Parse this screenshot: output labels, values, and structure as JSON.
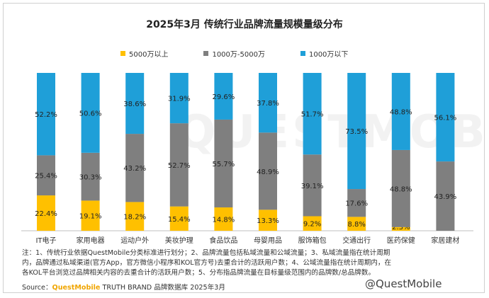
{
  "chart_data": {
    "type": "bar",
    "stacked": true,
    "title": "2025年3月 传统行业品牌流量规模量级分布",
    "categories": [
      "IT电子",
      "家用电器",
      "运动户外",
      "美妆护理",
      "食品饮品",
      "母婴用品",
      "服饰箱包",
      "交通出行",
      "医药保健",
      "家居建材"
    ],
    "series": [
      {
        "name": "5000万以上",
        "color": "#ffc000",
        "values": [
          22.4,
          19.1,
          18.2,
          15.4,
          14.8,
          13.3,
          9.2,
          8.8,
          2.3,
          0
        ],
        "labels": [
          "22.4%",
          "19.1%",
          "18.2%",
          "15.4%",
          "14.8%",
          "13.3%",
          "9.2%",
          "8.8%",
          "2.3%",
          ""
        ]
      },
      {
        "name": "1000万-5000万",
        "color": "#7f7f7f",
        "values": [
          25.4,
          30.3,
          43.2,
          52.7,
          55.7,
          48.9,
          39.1,
          17.6,
          48.8,
          43.9
        ],
        "labels": [
          "25.4%",
          "30.3%",
          "43.2%",
          "52.7%",
          "55.7%",
          "48.9%",
          "39.1%",
          "17.6%",
          "48.8%",
          "43.9%"
        ]
      },
      {
        "name": "1000万以下",
        "color": "#1f9fd8",
        "values": [
          52.2,
          50.6,
          38.6,
          31.9,
          29.6,
          37.8,
          51.7,
          73.5,
          48.8,
          56.1
        ],
        "labels": [
          "52.2%",
          "50.6%",
          "38.6%",
          "31.9%",
          "29.6%",
          "37.8%",
          "51.7%",
          "73.5%",
          "48.8%",
          "56.1%"
        ]
      }
    ],
    "legend_position": "top",
    "grid": false
  },
  "notes": {
    "line1": "注：1、传统行业依据QuestMobile分类标准进行划分；2、品牌流量包括私域流量和公域流量；3、私域流量指在统计周期",
    "line2": "内，品牌通过私域渠道(官方App，官方微信小程序和KOL官方号)去重合计的活跃用户数；4、公域流量指在统计周期内，在",
    "line3": "各KOL平台浏览过品牌相关内容的去重合计的活跃用户数；5、分布指品牌流量在目标量级范围内的品牌数/总品牌数。"
  },
  "source": {
    "prefix": "Source：",
    "brand": "QuestMobile",
    "text": " TRUTH BRAND 品牌数据库 2025年3月"
  },
  "watermark": {
    "bottom_right": "@QuestMobile",
    "background": "QUESTMOBILE"
  }
}
